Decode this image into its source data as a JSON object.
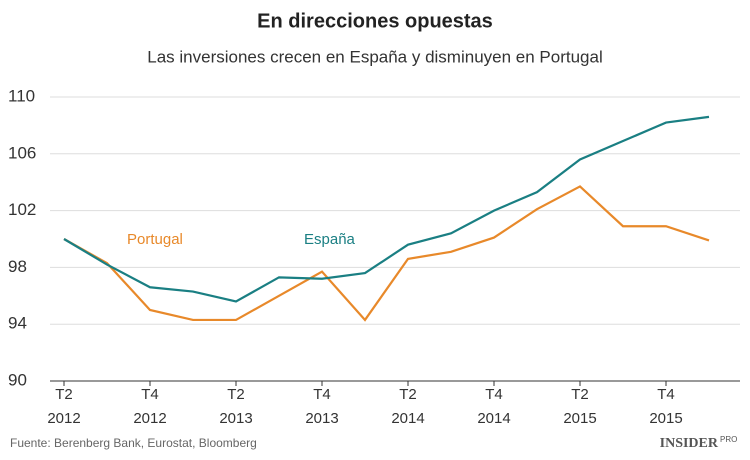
{
  "chart_data": {
    "type": "line",
    "title": "En direcciones opuestas",
    "subtitle": "Las inversiones crecen en España y disminuyen en Portugal",
    "categories": [
      "T2 2012",
      null,
      "T4 2012",
      null,
      "T2 2013",
      null,
      "T4 2013",
      null,
      "T2 2014",
      null,
      "T4 2014",
      null,
      "T2 2015",
      null,
      "T4 2015",
      null
    ],
    "series": [
      {
        "name": "Portugal",
        "color": "#e8892a",
        "values": [
          100,
          98.3,
          95.0,
          94.3,
          94.3,
          96.0,
          97.7,
          94.3,
          98.6,
          99.1,
          100.1,
          102.1,
          103.7,
          100.9,
          100.9,
          99.9
        ]
      },
      {
        "name": "España",
        "color": "#1a7f83",
        "values": [
          100,
          98.2,
          96.6,
          96.3,
          95.6,
          97.3,
          97.2,
          97.6,
          99.6,
          100.4,
          102.0,
          103.3,
          105.6,
          106.9,
          108.2,
          108.6
        ]
      }
    ],
    "ylim": [
      90,
      110
    ],
    "yticks": [
      90,
      94,
      98,
      102,
      106,
      110
    ],
    "grid": true,
    "source": "Fuente: Berenberg Bank, Eurostat, Bloomberg",
    "logo": "INSIDER",
    "logo_sup": "PRO"
  }
}
